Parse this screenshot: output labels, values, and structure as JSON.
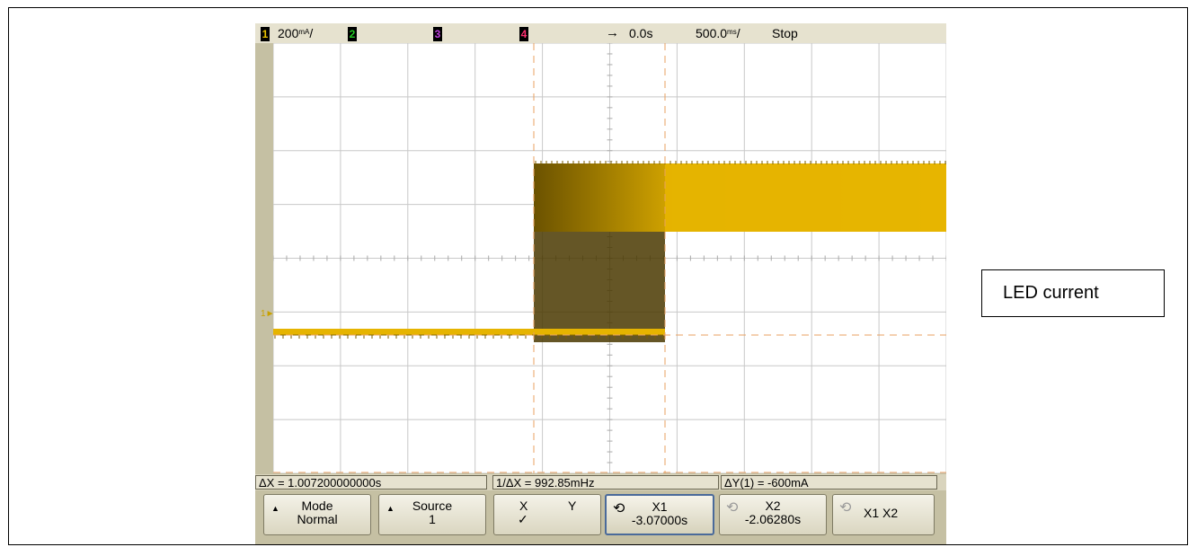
{
  "topbar": {
    "ch1_num": "1",
    "ch1_scale": "200",
    "ch1_unit_top": "mA",
    "ch1_unit_bot": "/",
    "ch2_num": "2",
    "ch3_num": "3",
    "ch4_num": "4",
    "trigger_arrow": "→",
    "delay": "0.0s",
    "timebase": "500.0",
    "timebase_unit": "ms",
    "run_state": "Stop"
  },
  "ground_marker": "1",
  "measurements": {
    "delta_x": "ΔX = 1.007200000000s",
    "inv_delta_x": "1/ΔX = 992.85mHz",
    "delta_y": "ΔY(1) = -600mA"
  },
  "softkeys": {
    "mode_title": "Mode",
    "mode_value": "Normal",
    "source_title": "Source",
    "source_value": "1",
    "xy_x": "X",
    "xy_y": "Y",
    "xy_check": "✓",
    "x1_title": "X1",
    "x1_value": "-3.07000s",
    "x2_title": "X2",
    "x2_value": "-2.06280s",
    "x1x2_label": "X1 X2"
  },
  "annotation": "LED current",
  "colors": {
    "trace": "#e6b400",
    "trace_dark": "#4a3800",
    "cursor_orange": "#e8a060",
    "ch1": "#e8c200",
    "ch2": "#22aa22",
    "ch3": "#a020c0",
    "ch4": "#ff2060"
  },
  "icons": {
    "knob": "rotate-knob-icon",
    "arrow": "up-triangle-icon"
  }
}
